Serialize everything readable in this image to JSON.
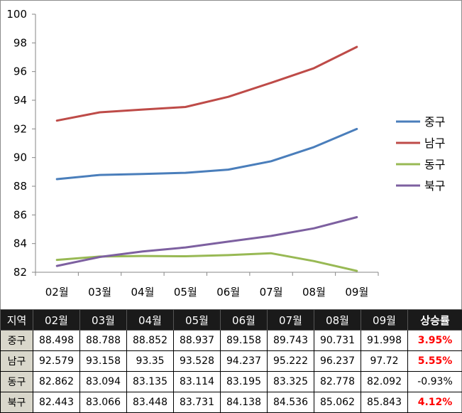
{
  "chart_data": {
    "type": "line",
    "categories": [
      "02월",
      "03월",
      "04월",
      "05월",
      "06월",
      "07월",
      "08월",
      "09월"
    ],
    "series": [
      {
        "name": "중구",
        "color": "#4a7ebb",
        "values": [
          88.498,
          88.788,
          88.852,
          88.937,
          89.158,
          89.743,
          90.731,
          91.998
        ]
      },
      {
        "name": "남구",
        "color": "#be4b48",
        "values": [
          92.579,
          93.158,
          93.35,
          93.528,
          94.237,
          95.222,
          96.237,
          97.72
        ]
      },
      {
        "name": "동구",
        "color": "#98b954",
        "values": [
          82.862,
          83.094,
          83.135,
          83.114,
          83.195,
          83.325,
          82.778,
          82.092
        ]
      },
      {
        "name": "북구",
        "color": "#7d60a0",
        "values": [
          82.443,
          83.066,
          83.448,
          83.731,
          84.138,
          84.536,
          85.062,
          85.843
        ]
      }
    ],
    "ylim": [
      82,
      100
    ],
    "yticks": [
      "82",
      "84",
      "86",
      "88",
      "90",
      "92",
      "94",
      "96",
      "98",
      "100"
    ],
    "legend": "right",
    "grid": false
  },
  "table": {
    "headers": [
      "지역",
      "02월",
      "03월",
      "04월",
      "05월",
      "06월",
      "07월",
      "08월",
      "09월",
      "상승률"
    ],
    "rows": [
      {
        "region": "중구",
        "cells": [
          "88.498",
          "88.788",
          "88.852",
          "88.937",
          "89.158",
          "89.743",
          "90.731",
          "91.998"
        ],
        "rate": "3.95%",
        "rate_positive": true
      },
      {
        "region": "남구",
        "cells": [
          "92.579",
          "93.158",
          "93.35",
          "93.528",
          "94.237",
          "95.222",
          "96.237",
          "97.72"
        ],
        "rate": "5.55%",
        "rate_positive": true
      },
      {
        "region": "동구",
        "cells": [
          "82.862",
          "83.094",
          "83.135",
          "83.114",
          "83.195",
          "83.325",
          "82.778",
          "82.092"
        ],
        "rate": "-0.93%",
        "rate_positive": false
      },
      {
        "region": "북구",
        "cells": [
          "82.443",
          "83.066",
          "83.448",
          "83.731",
          "84.138",
          "84.536",
          "85.062",
          "85.843"
        ],
        "rate": "4.12%",
        "rate_positive": true
      }
    ]
  }
}
